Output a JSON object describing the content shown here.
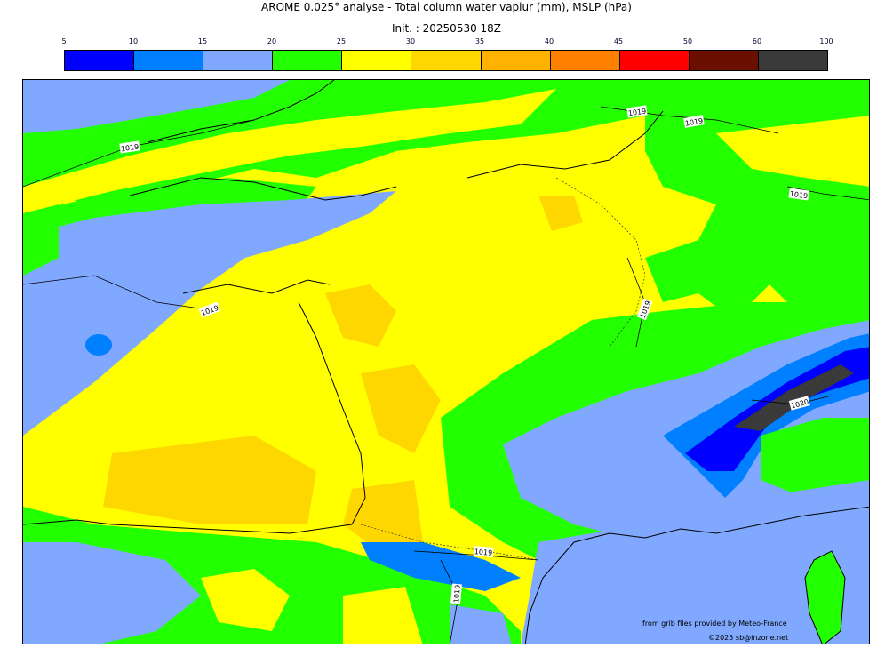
{
  "header": {
    "title": "AROME 0.025° analyse - Total column water vapiur (mm), MSLP (hPa)",
    "init": "Init. : 20250530 18Z"
  },
  "colorbar": {
    "ticks": [
      "5",
      "10",
      "15",
      "20",
      "25",
      "30",
      "35",
      "40",
      "45",
      "50",
      "60",
      "100"
    ],
    "colors": [
      "#0000ff",
      "#0080ff",
      "#80a8ff",
      "#22ff00",
      "#ffff00",
      "#ffd700",
      "#ffb300",
      "#ff8000",
      "#ff0000",
      "#6b0f00",
      "#3a3a3a"
    ]
  },
  "isobars": {
    "labels": [
      "1019",
      "1019",
      "1019",
      "1019",
      "1019",
      "1019",
      "1019",
      "1019",
      "1020"
    ]
  },
  "credits": {
    "source": "from grib files provided by Meteo-France",
    "copyright": "©2025 sb@inzone.net"
  }
}
